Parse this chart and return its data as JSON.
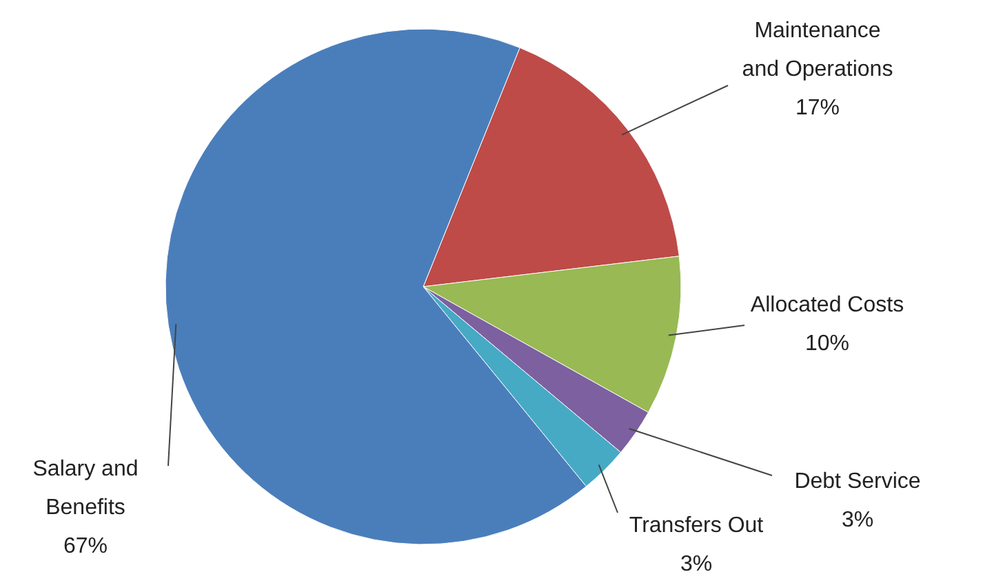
{
  "chart_data": {
    "type": "pie",
    "categories": [
      "Maintenance and Operations",
      "Allocated Costs",
      "Debt Service",
      "Transfers Out",
      "Salary and Benefits"
    ],
    "values": [
      17,
      10,
      3,
      3,
      67
    ],
    "value_labels": [
      "17%",
      "10%",
      "3%",
      "3%",
      "67%"
    ],
    "colors": [
      "#be4b48",
      "#98b954",
      "#7d60a0",
      "#46aac5",
      "#4a7ebb"
    ],
    "legend": false
  }
}
